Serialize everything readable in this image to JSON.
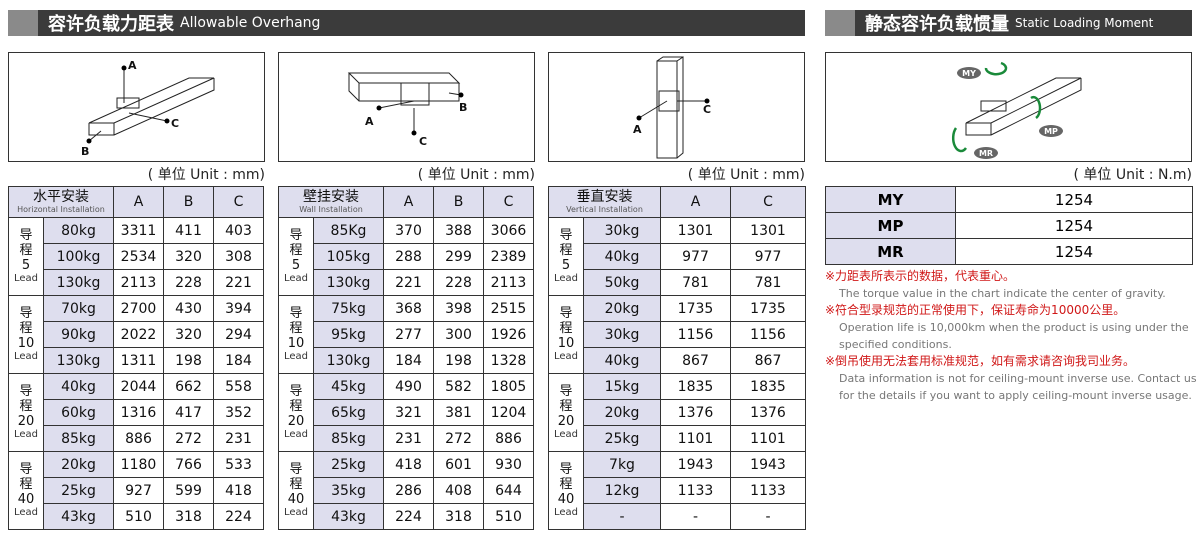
{
  "left_header": {
    "title_cn": "容许负载力距表",
    "title_en": "Allowable Overhang"
  },
  "right_header": {
    "title_cn": "静态容许负载惯量",
    "title_en": "Static Loading Moment"
  },
  "diagrams": [
    {
      "labels": [
        "A",
        "B",
        "C"
      ]
    },
    {
      "labels": [
        "A",
        "B",
        "C"
      ]
    },
    {
      "labels": [
        "A",
        "C"
      ]
    },
    {
      "labels": [
        "MY",
        "MP",
        "MR"
      ]
    }
  ],
  "lead_label": "导程",
  "lead_unit": "Lead",
  "tables": [
    {
      "unit": "( 单位 Unit : mm)",
      "header_cn": "水平安装",
      "header_en": "Horizontal Installation",
      "columns": [
        "A",
        "B",
        "C"
      ],
      "groups": [
        {
          "lead": 5,
          "rows": [
            [
              "80kg",
              3311,
              411,
              403
            ],
            [
              "100kg",
              2534,
              320,
              308
            ],
            [
              "130kg",
              2113,
              228,
              221
            ]
          ]
        },
        {
          "lead": 10,
          "rows": [
            [
              "70kg",
              2700,
              430,
              394
            ],
            [
              "90kg",
              2022,
              320,
              294
            ],
            [
              "130kg",
              1311,
              198,
              184
            ]
          ]
        },
        {
          "lead": 20,
          "rows": [
            [
              "40kg",
              2044,
              662,
              558
            ],
            [
              "60kg",
              1316,
              417,
              352
            ],
            [
              "85kg",
              886,
              272,
              231
            ]
          ]
        },
        {
          "lead": 40,
          "rows": [
            [
              "20kg",
              1180,
              766,
              533
            ],
            [
              "25kg",
              927,
              599,
              418
            ],
            [
              "43kg",
              510,
              318,
              224
            ]
          ]
        }
      ]
    },
    {
      "unit": "( 单位 Unit : mm)",
      "header_cn": "壁挂安装",
      "header_en": "Wall Installation",
      "columns": [
        "A",
        "B",
        "C"
      ],
      "groups": [
        {
          "lead": 5,
          "rows": [
            [
              "85Kg",
              370,
              388,
              3066
            ],
            [
              "105kg",
              288,
              299,
              2389
            ],
            [
              "130kg",
              221,
              228,
              2113
            ]
          ]
        },
        {
          "lead": 10,
          "rows": [
            [
              "75kg",
              368,
              398,
              2515
            ],
            [
              "95kg",
              277,
              300,
              1926
            ],
            [
              "130kg",
              184,
              198,
              1328
            ]
          ]
        },
        {
          "lead": 20,
          "rows": [
            [
              "45kg",
              490,
              582,
              1805
            ],
            [
              "65kg",
              321,
              381,
              1204
            ],
            [
              "85kg",
              231,
              272,
              886
            ]
          ]
        },
        {
          "lead": 40,
          "rows": [
            [
              "25kg",
              418,
              601,
              930
            ],
            [
              "35kg",
              286,
              408,
              644
            ],
            [
              "43kg",
              224,
              318,
              510
            ]
          ]
        }
      ]
    },
    {
      "unit": "( 单位 Unit : mm)",
      "header_cn": "垂直安装",
      "header_en": "Vertical Installation",
      "columns": [
        "A",
        "C"
      ],
      "groups": [
        {
          "lead": 5,
          "rows": [
            [
              "30kg",
              1301,
              1301
            ],
            [
              "40kg",
              977,
              977
            ],
            [
              "50kg",
              781,
              781
            ]
          ]
        },
        {
          "lead": 10,
          "rows": [
            [
              "20kg",
              1735,
              1735
            ],
            [
              "30kg",
              1156,
              1156
            ],
            [
              "40kg",
              867,
              867
            ]
          ]
        },
        {
          "lead": 20,
          "rows": [
            [
              "15kg",
              1835,
              1835
            ],
            [
              "20kg",
              1376,
              1376
            ],
            [
              "25kg",
              1101,
              1101
            ]
          ]
        },
        {
          "lead": 40,
          "rows": [
            [
              "7kg",
              1943,
              1943
            ],
            [
              "12kg",
              1133,
              1133
            ],
            [
              "-",
              "-",
              "-"
            ]
          ]
        }
      ]
    }
  ],
  "moment_table": {
    "unit": "( 单位 Unit : N.m)",
    "rows": [
      [
        "MY",
        1254
      ],
      [
        "MP",
        1254
      ],
      [
        "MR",
        1254
      ]
    ]
  },
  "notes": [
    {
      "cn": "※力距表所表示的数据，代表重心。",
      "en": "The torque value in the chart indicate the center of gravity."
    },
    {
      "cn": "※符合型录规范的正常使用下，保证寿命为10000公里。",
      "en": "Operation life is 10,000km when the product is using under the specified conditions."
    },
    {
      "cn": "※倒吊使用无法套用标准规范，如有需求请咨询我司业务。",
      "en": "Data information is not for ceiling-mount inverse use. Contact us for the details if you want to apply ceiling-mount inverse usage."
    }
  ]
}
